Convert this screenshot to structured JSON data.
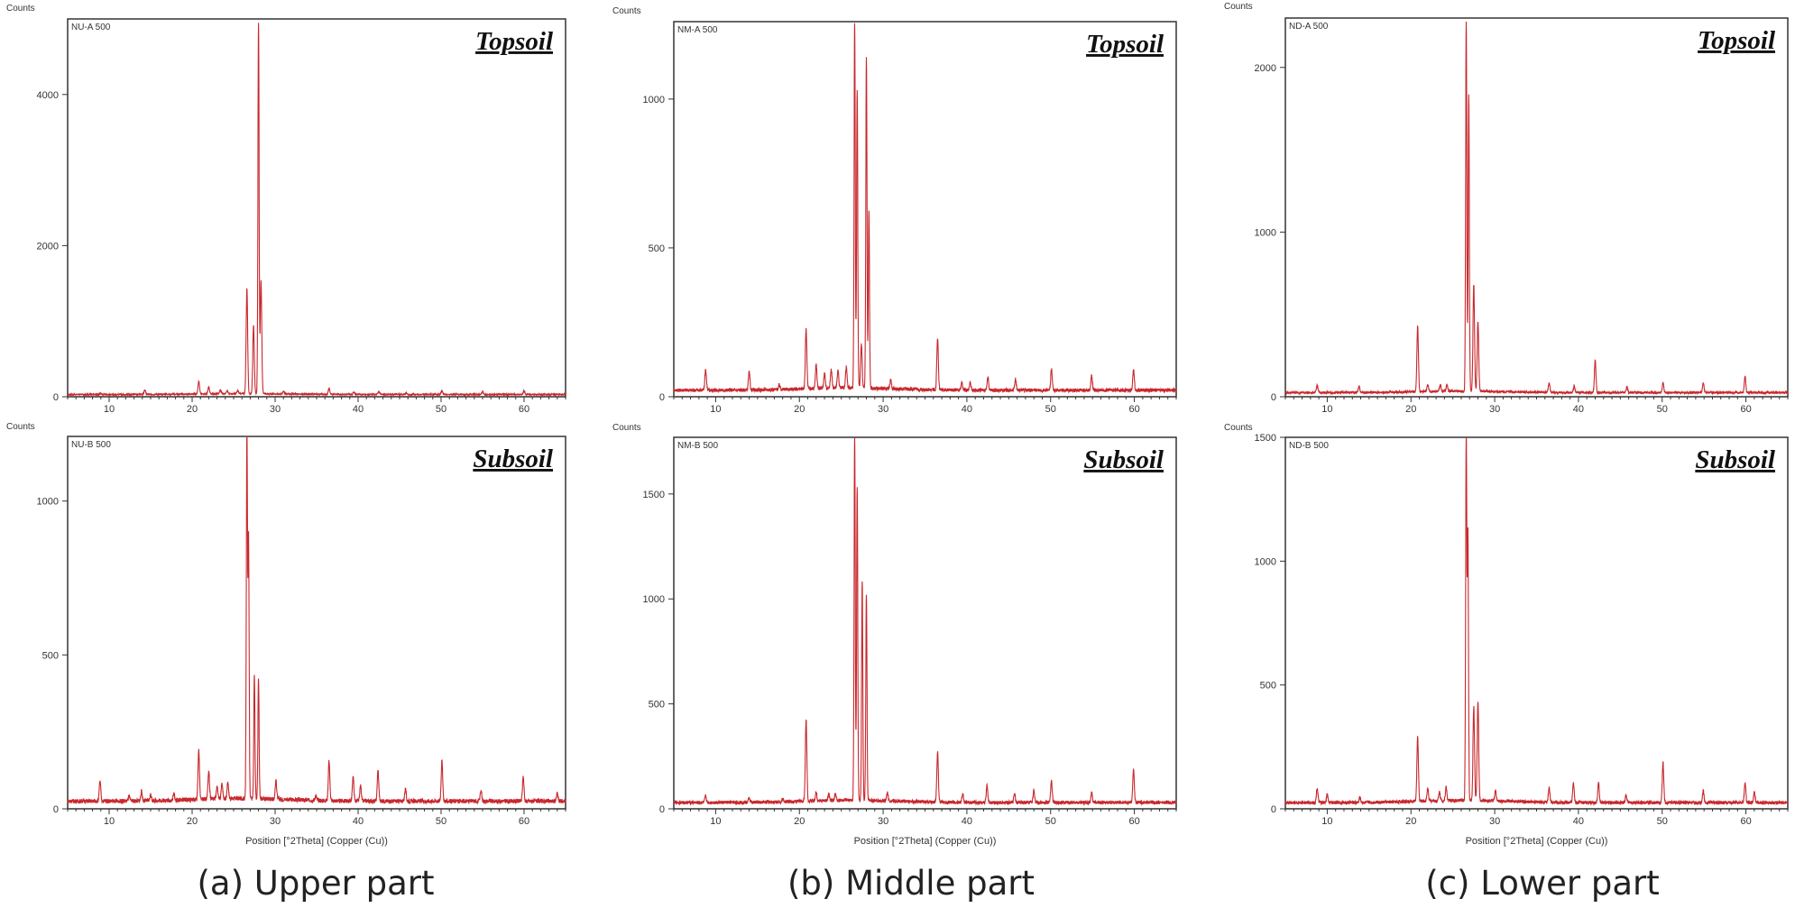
{
  "chart_data": [
    {
      "type": "line",
      "title": "Topsoil",
      "sample_label": "NU-A 500",
      "ylabel": "Counts",
      "xlabel": "",
      "xlim": [
        5,
        65
      ],
      "ylim": [
        0,
        5000
      ],
      "y_ticks": [
        0,
        2000,
        4000
      ],
      "x_ticks": [
        10,
        20,
        30,
        40,
        50,
        60
      ],
      "color": "#c8282d",
      "baseline": 30,
      "peaks": [
        [
          9,
          15
        ],
        [
          14.3,
          60
        ],
        [
          20.8,
          170
        ],
        [
          22.0,
          90
        ],
        [
          23.4,
          50
        ],
        [
          24.2,
          40
        ],
        [
          25.5,
          40
        ],
        [
          26.6,
          1400
        ],
        [
          27.4,
          900
        ],
        [
          28.0,
          4900
        ],
        [
          28.3,
          1500
        ],
        [
          31,
          40
        ],
        [
          36.5,
          80
        ],
        [
          39.5,
          30
        ],
        [
          42.5,
          40
        ],
        [
          45.8,
          20
        ],
        [
          50.1,
          50
        ],
        [
          55.0,
          40
        ],
        [
          60.0,
          50
        ]
      ]
    },
    {
      "type": "line",
      "title": "Topsoil",
      "sample_label": "NM-A 500",
      "ylabel": "Counts",
      "xlabel": "",
      "xlim": [
        5,
        65
      ],
      "ylim": [
        0,
        1260
      ],
      "y_ticks": [
        0,
        500,
        1000
      ],
      "x_ticks": [
        10,
        20,
        30,
        40,
        50,
        60
      ],
      "color": "#c8282d",
      "baseline": 22,
      "peaks": [
        [
          8.8,
          70
        ],
        [
          14.0,
          60
        ],
        [
          17.6,
          15
        ],
        [
          20.8,
          200
        ],
        [
          22.0,
          80
        ],
        [
          23.0,
          50
        ],
        [
          23.8,
          65
        ],
        [
          24.6,
          60
        ],
        [
          25.6,
          70
        ],
        [
          26.6,
          1230
        ],
        [
          26.9,
          1000
        ],
        [
          27.4,
          150
        ],
        [
          28.0,
          1110
        ],
        [
          28.3,
          600
        ],
        [
          30.9,
          30
        ],
        [
          36.5,
          175
        ],
        [
          39.4,
          25
        ],
        [
          40.4,
          25
        ],
        [
          42.5,
          45
        ],
        [
          45.8,
          35
        ],
        [
          50.1,
          70
        ],
        [
          54.9,
          50
        ],
        [
          59.9,
          70
        ]
      ]
    },
    {
      "type": "line",
      "title": "Topsoil",
      "sample_label": "ND-A 500",
      "ylabel": "Counts",
      "xlabel": "",
      "xlim": [
        5,
        65
      ],
      "ylim": [
        0,
        2300
      ],
      "y_ticks": [
        0,
        1000,
        2000
      ],
      "x_ticks": [
        10,
        20,
        30,
        40,
        50,
        60
      ],
      "color": "#c8282d",
      "baseline": 25,
      "peaks": [
        [
          8.8,
          45
        ],
        [
          13.8,
          40
        ],
        [
          20.8,
          400
        ],
        [
          22.0,
          40
        ],
        [
          23.5,
          40
        ],
        [
          24.3,
          40
        ],
        [
          26.6,
          2250
        ],
        [
          26.9,
          1800
        ],
        [
          27.5,
          650
        ],
        [
          28.0,
          420
        ],
        [
          36.5,
          60
        ],
        [
          39.5,
          40
        ],
        [
          42.0,
          200
        ],
        [
          45.8,
          35
        ],
        [
          50.1,
          60
        ],
        [
          54.9,
          60
        ],
        [
          59.9,
          100
        ]
      ]
    },
    {
      "type": "line",
      "title": "Subsoil",
      "sample_label": "NU-B 500",
      "ylabel": "Counts",
      "xlabel": "Position [°2Theta] (Copper (Cu))",
      "xlim": [
        5,
        65
      ],
      "ylim": [
        0,
        1210
      ],
      "y_ticks": [
        0,
        500,
        1000
      ],
      "x_ticks": [
        10,
        20,
        30,
        40,
        50,
        60
      ],
      "color": "#c8282d",
      "baseline": 25,
      "peaks": [
        [
          8.9,
          65
        ],
        [
          12.4,
          15
        ],
        [
          13.9,
          30
        ],
        [
          15.0,
          20
        ],
        [
          17.8,
          20
        ],
        [
          20.8,
          160
        ],
        [
          22.0,
          90
        ],
        [
          23.0,
          40
        ],
        [
          23.6,
          50
        ],
        [
          24.3,
          55
        ],
        [
          26.6,
          1200
        ],
        [
          26.8,
          850
        ],
        [
          27.5,
          400
        ],
        [
          28.0,
          390
        ],
        [
          30.1,
          60
        ],
        [
          34.9,
          15
        ],
        [
          36.5,
          130
        ],
        [
          39.4,
          80
        ],
        [
          40.3,
          50
        ],
        [
          42.4,
          100
        ],
        [
          45.7,
          40
        ],
        [
          50.1,
          130
        ],
        [
          54.8,
          35
        ],
        [
          59.9,
          80
        ],
        [
          64.0,
          25
        ]
      ]
    },
    {
      "type": "line",
      "title": "Subsoil",
      "sample_label": "NM-B 500",
      "ylabel": "Counts",
      "xlabel": "Position [°2Theta] (Copper (Cu))",
      "xlim": [
        5,
        65
      ],
      "ylim": [
        0,
        1770
      ],
      "y_ticks": [
        0,
        500,
        1000,
        1500
      ],
      "x_ticks": [
        10,
        20,
        30,
        40,
        50,
        60
      ],
      "color": "#c8282d",
      "baseline": 30,
      "peaks": [
        [
          8.8,
          30
        ],
        [
          14.0,
          20
        ],
        [
          18.0,
          15
        ],
        [
          20.8,
          390
        ],
        [
          22.0,
          40
        ],
        [
          23.5,
          30
        ],
        [
          24.3,
          30
        ],
        [
          26.6,
          1750
        ],
        [
          26.9,
          1500
        ],
        [
          27.5,
          1050
        ],
        [
          28.0,
          980
        ],
        [
          30.5,
          40
        ],
        [
          36.5,
          240
        ],
        [
          39.5,
          40
        ],
        [
          42.4,
          80
        ],
        [
          45.7,
          45
        ],
        [
          48.0,
          60
        ],
        [
          50.1,
          100
        ],
        [
          54.9,
          50
        ],
        [
          59.9,
          160
        ]
      ]
    },
    {
      "type": "line",
      "title": "Subsoil",
      "sample_label": "ND-B 500",
      "ylabel": "Counts",
      "xlabel": "Position [°2Theta] (Copper (Cu))",
      "xlim": [
        5,
        65
      ],
      "ylim": [
        0,
        1500
      ],
      "y_ticks": [
        0,
        500,
        1000,
        1500
      ],
      "x_ticks": [
        10,
        20,
        30,
        40,
        50,
        60
      ],
      "color": "#c8282d",
      "baseline": 25,
      "peaks": [
        [
          8.8,
          60
        ],
        [
          10.0,
          35
        ],
        [
          13.9,
          20
        ],
        [
          20.8,
          260
        ],
        [
          22.0,
          50
        ],
        [
          23.4,
          35
        ],
        [
          24.2,
          55
        ],
        [
          26.6,
          1470
        ],
        [
          26.8,
          1080
        ],
        [
          27.5,
          380
        ],
        [
          28.0,
          400
        ],
        [
          30.1,
          40
        ],
        [
          36.5,
          60
        ],
        [
          39.4,
          80
        ],
        [
          42.4,
          80
        ],
        [
          45.7,
          30
        ],
        [
          50.1,
          160
        ],
        [
          54.9,
          50
        ],
        [
          59.9,
          80
        ],
        [
          61.0,
          45
        ]
      ]
    }
  ],
  "captions": [
    "(a) Upper part",
    "(b) Middle part",
    "(c) Lower part"
  ]
}
